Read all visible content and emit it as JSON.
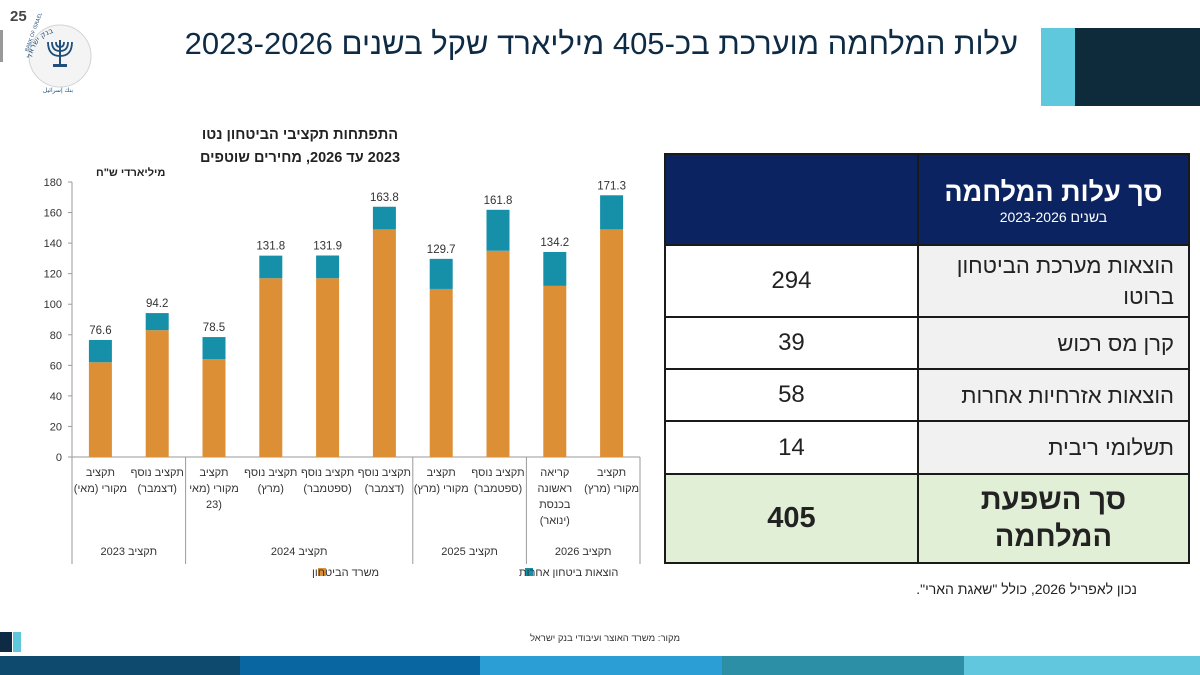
{
  "page_number": "25",
  "title": "עלות המלחמה מוערכת בכ-405 מיליארד שקל בשנים 2023-2026",
  "logo": {
    "text_he": "בנק ישראל",
    "text_en": "BANK OF ISRAEL",
    "text_ar": "بنك إسرائيل"
  },
  "chart_data": {
    "type": "bar",
    "stacked": true,
    "title_line1": "התפתחות תקציבי הביטחון נטו",
    "title_line2": "2023 עד 2026, מחירים שוטפים",
    "ylabel": "מיליארדי ש\"ח",
    "ylim": [
      0,
      180
    ],
    "yticks": [
      "0",
      "20",
      "40",
      "60",
      "80",
      "100",
      "120",
      "140",
      "160",
      "180"
    ],
    "categories": [
      {
        "line1": "תקציב",
        "line2": "מקורי (מאי)",
        "line3": ""
      },
      {
        "line1": "תקציב נוסף",
        "line2": "(דצמבר)",
        "line3": ""
      },
      {
        "line1": "תקציב",
        "line2": "מקורי (מאי",
        "line3": "(23"
      },
      {
        "line1": "תקציב נוסף",
        "line2": "(מרץ)",
        "line3": ""
      },
      {
        "line1": "תקציב נוסף",
        "line2": "(ספטמבר)",
        "line3": ""
      },
      {
        "line1": "תקציב נוסף",
        "line2": "(דצמבר)",
        "line3": ""
      },
      {
        "line1": "תקציב",
        "line2": "מקורי (מרץ)",
        "line3": ""
      },
      {
        "line1": "תקציב נוסף",
        "line2": "(ספטמבר)",
        "line3": ""
      },
      {
        "line1": "קריאה",
        "line2": "ראשונה",
        "line3": "בכנסת",
        "line4": "(ינואר)"
      },
      {
        "line1": "תקציב",
        "line2": "מקורי (מרץ)",
        "line3": ""
      }
    ],
    "series": [
      {
        "name": "משרד הביטחון",
        "color": "#dd8f35",
        "values": [
          62,
          83,
          64,
          117,
          117,
          149,
          110,
          135,
          112,
          149
        ]
      },
      {
        "name": "הוצאות ביטחון אחרות",
        "color": "#168fa8",
        "values": [
          14.6,
          11.2,
          14.5,
          14.8,
          14.9,
          14.8,
          19.7,
          26.8,
          22.2,
          22.3
        ]
      }
    ],
    "totals": [
      "76.6",
      "94.2",
      "78.5",
      "131.8",
      "131.9",
      "163.8",
      "129.7",
      "161.8",
      "134.2",
      "171.3"
    ],
    "groups": [
      {
        "label": "תקציב 2023",
        "start": 0,
        "end": 1
      },
      {
        "label": "תקציב 2024",
        "start": 2,
        "end": 5
      },
      {
        "label": "תקציב 2025",
        "start": 6,
        "end": 7
      },
      {
        "label": "תקציב 2026",
        "start": 8,
        "end": 9
      }
    ],
    "legend_position": "bottom"
  },
  "table": {
    "header_big": "סך עלות המלחמה",
    "header_small": "בשנים 2023-2026",
    "rows": [
      {
        "label": "הוצאות מערכת הביטחון ברוטו",
        "value": "294"
      },
      {
        "label": "קרן מס רכוש",
        "value": "39"
      },
      {
        "label": "הוצאות אזרחיות אחרות",
        "value": "58"
      },
      {
        "label": "תשלומי ריבית",
        "value": "14"
      }
    ],
    "total_label": "סך השפעת המלחמה",
    "total_value": "405"
  },
  "footnote": "נכון לאפריל 2026, כולל \"שאגת הארי\".",
  "source": "מקור: משרד האוצר ועיבודי בנק ישראל",
  "colors": {
    "navy": "#0b2360",
    "title": "#0e2b45",
    "accent_light": "#5fc8dc",
    "accent_dark": "#0e2b3c",
    "green": "#e1efd6",
    "footer": [
      "#0e4a6e",
      "#0a66a0",
      "#2c9ed6",
      "#2d8fa5",
      "#60c7df"
    ]
  }
}
